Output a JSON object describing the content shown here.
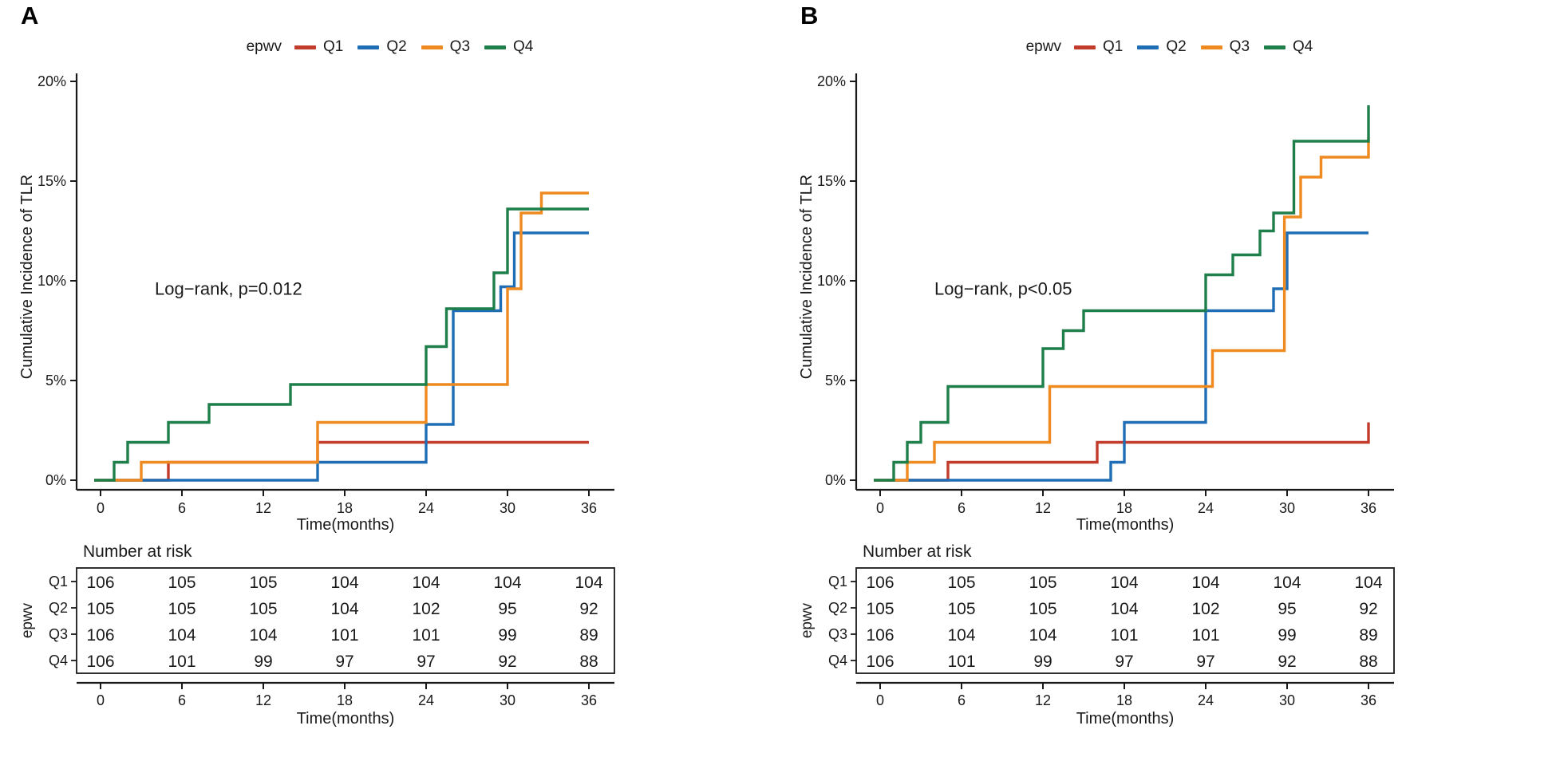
{
  "chart_data": [
    {
      "panel_letter": "A",
      "type": "line",
      "subtype": "step-cumulative-incidence",
      "annotation": "Log−rank, p=0.012",
      "xlabel": "Time(months)",
      "ylabel": "Cumulative Incidence of TLR",
      "xticks": [
        0,
        6,
        12,
        18,
        24,
        30,
        36
      ],
      "ytick_labels": [
        "0%",
        "5%",
        "10%",
        "15%",
        "20%"
      ],
      "xlim": [
        0,
        36
      ],
      "ylim": [
        0,
        20
      ],
      "legend_label": "epwv",
      "series": [
        {
          "name": "Q1",
          "color": "#c23b2b",
          "steps": [
            [
              0,
              0
            ],
            [
              5,
              0.9
            ],
            [
              16,
              1.9
            ]
          ]
        },
        {
          "name": "Q2",
          "color": "#1f6eb5",
          "steps": [
            [
              0,
              0
            ],
            [
              16,
              0.9
            ],
            [
              24,
              2.8
            ],
            [
              26,
              8.5
            ],
            [
              29.5,
              9.7
            ],
            [
              30.5,
              12.4
            ]
          ]
        },
        {
          "name": "Q3",
          "color": "#ee8a20",
          "steps": [
            [
              0,
              0
            ],
            [
              3,
              0.9
            ],
            [
              16,
              2.9
            ],
            [
              24,
              4.8
            ],
            [
              30,
              9.6
            ],
            [
              31,
              13.4
            ],
            [
              32.5,
              14.4
            ]
          ]
        },
        {
          "name": "Q4",
          "color": "#1f7f4b",
          "steps": [
            [
              0,
              0
            ],
            [
              1,
              0.9
            ],
            [
              2,
              1.9
            ],
            [
              5,
              2.9
            ],
            [
              8,
              3.8
            ],
            [
              14,
              4.8
            ],
            [
              24,
              6.7
            ],
            [
              25.5,
              8.6
            ],
            [
              29,
              10.4
            ],
            [
              30,
              13.6
            ]
          ]
        }
      ],
      "risk_table": {
        "title": "Number at risk",
        "group_label": "epwv",
        "times": [
          0,
          6,
          12,
          18,
          24,
          30,
          36
        ],
        "rows": [
          {
            "name": "Q1",
            "values": [
              106,
              105,
              105,
              104,
              104,
              104,
              104
            ]
          },
          {
            "name": "Q2",
            "values": [
              105,
              105,
              105,
              104,
              102,
              95,
              92
            ]
          },
          {
            "name": "Q3",
            "values": [
              106,
              104,
              104,
              101,
              101,
              99,
              89
            ]
          },
          {
            "name": "Q4",
            "values": [
              106,
              101,
              99,
              97,
              97,
              92,
              88
            ]
          }
        ],
        "xlabel": "Time(months)"
      }
    },
    {
      "panel_letter": "B",
      "type": "line",
      "subtype": "step-cumulative-incidence",
      "annotation": "Log−rank, p<0.05",
      "xlabel": "Time(months)",
      "ylabel": "Cumulative Incidence of TLR",
      "xticks": [
        0,
        6,
        12,
        18,
        24,
        30,
        36
      ],
      "ytick_labels": [
        "0%",
        "5%",
        "10%",
        "15%",
        "20%"
      ],
      "xlim": [
        0,
        36
      ],
      "ylim": [
        0,
        20
      ],
      "legend_label": "epwv",
      "series": [
        {
          "name": "Q1",
          "color": "#c23b2b",
          "steps": [
            [
              0,
              0
            ],
            [
              5,
              0.9
            ],
            [
              16,
              1.9
            ],
            [
              36,
              2.9
            ]
          ]
        },
        {
          "name": "Q2",
          "color": "#1f6eb5",
          "steps": [
            [
              0,
              0
            ],
            [
              17,
              0.9
            ],
            [
              18,
              2.9
            ],
            [
              24,
              8.5
            ],
            [
              29,
              9.6
            ],
            [
              30,
              12.4
            ]
          ]
        },
        {
          "name": "Q3",
          "color": "#ee8a20",
          "steps": [
            [
              0,
              0
            ],
            [
              2,
              0.9
            ],
            [
              4,
              1.9
            ],
            [
              12.5,
              4.7
            ],
            [
              24.5,
              6.5
            ],
            [
              29.8,
              13.2
            ],
            [
              31,
              15.2
            ],
            [
              32.5,
              16.2
            ],
            [
              36,
              17.2
            ]
          ]
        },
        {
          "name": "Q4",
          "color": "#1f7f4b",
          "steps": [
            [
              0,
              0
            ],
            [
              1,
              0.9
            ],
            [
              2,
              1.9
            ],
            [
              3,
              2.9
            ],
            [
              5,
              4.7
            ],
            [
              12,
              6.6
            ],
            [
              13.5,
              7.5
            ],
            [
              15,
              8.5
            ],
            [
              24,
              10.3
            ],
            [
              26,
              11.3
            ],
            [
              28,
              12.5
            ],
            [
              29,
              13.4
            ],
            [
              30.5,
              17
            ],
            [
              36,
              18.8
            ]
          ]
        }
      ],
      "risk_table": {
        "title": "Number at risk",
        "group_label": "epwv",
        "times": [
          0,
          6,
          12,
          18,
          24,
          30,
          36
        ],
        "rows": [
          {
            "name": "Q1",
            "values": [
              106,
              105,
              105,
              104,
              104,
              104,
              104
            ]
          },
          {
            "name": "Q2",
            "values": [
              105,
              105,
              105,
              104,
              102,
              95,
              92
            ]
          },
          {
            "name": "Q3",
            "values": [
              106,
              104,
              104,
              101,
              101,
              99,
              89
            ]
          },
          {
            "name": "Q4",
            "values": [
              106,
              101,
              99,
              97,
              97,
              92,
              88
            ]
          }
        ],
        "xlabel": "Time(months)"
      }
    }
  ]
}
